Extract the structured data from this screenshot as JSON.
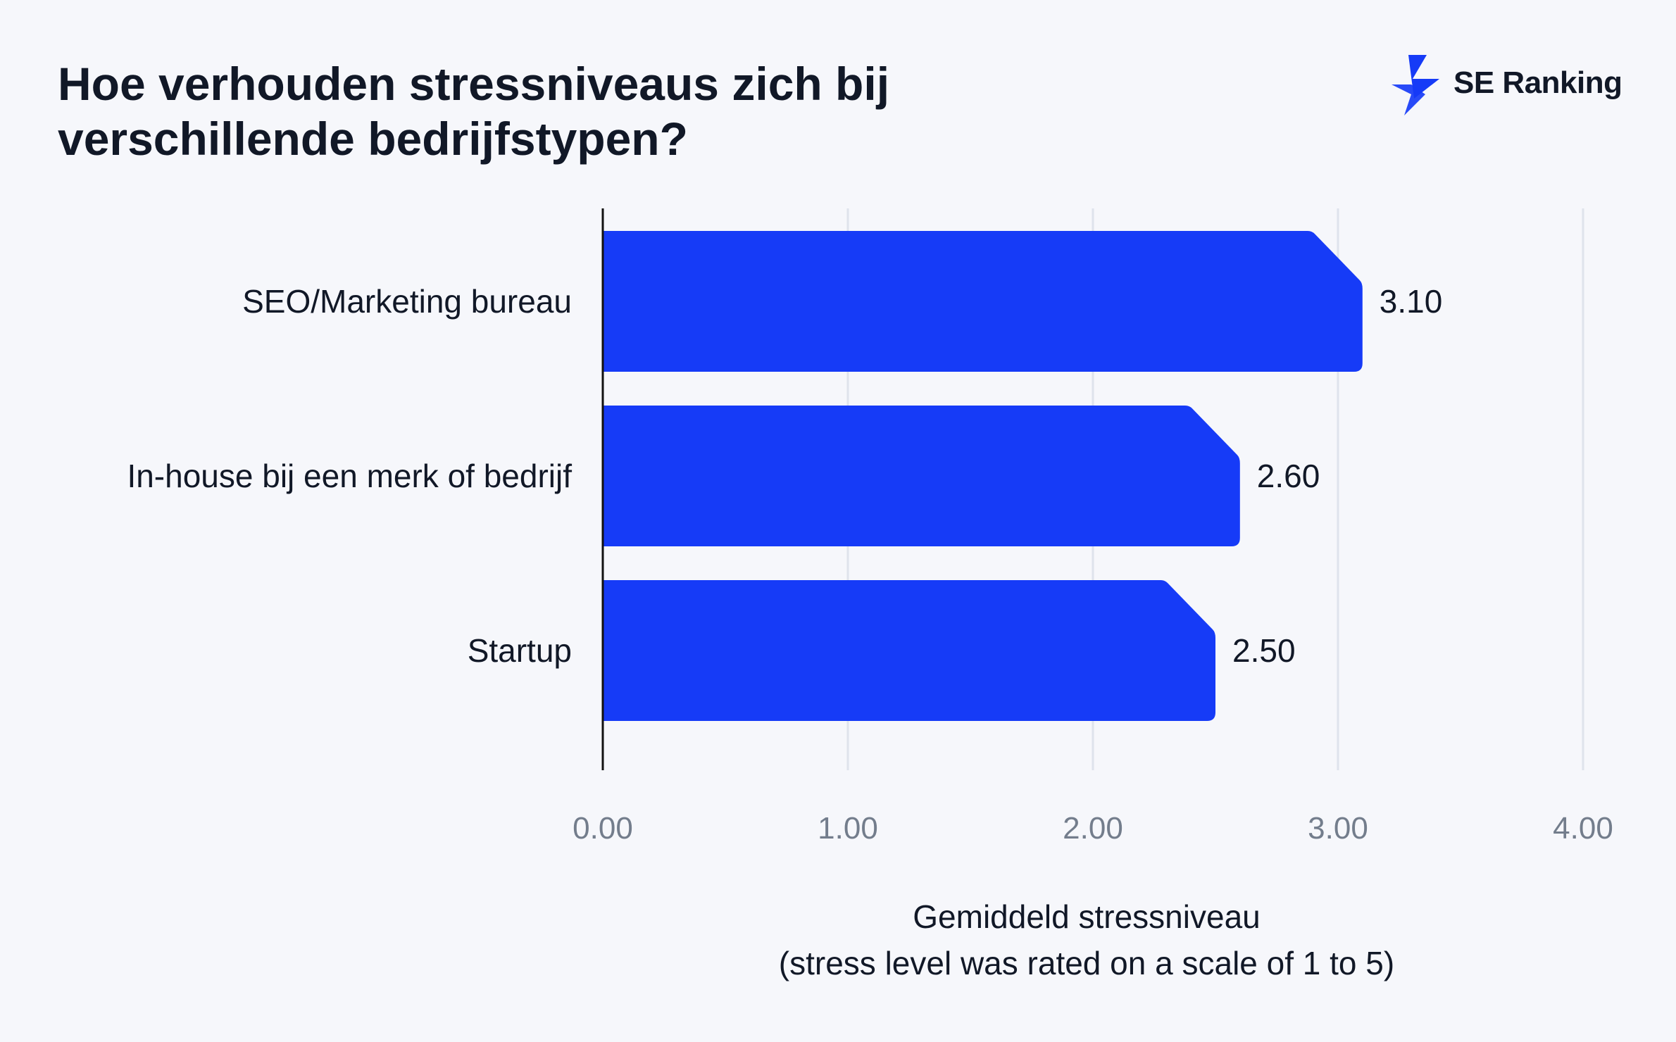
{
  "brand": {
    "name": "SE Ranking",
    "color": "#163bf7",
    "logo_icon": "lightning-bolt-icon"
  },
  "chart_data": {
    "type": "bar",
    "orientation": "horizontal",
    "title_lines": [
      "Hoe verhouden stressniveaus zich bij",
      "verschillende bedrijfstypen?"
    ],
    "categories": [
      "SEO/Marketing bureau",
      "In-house bij een merk of bedrijf",
      "Startup"
    ],
    "values": [
      3.1,
      2.6,
      2.5
    ],
    "value_labels": [
      "3.10",
      "2.60",
      "2.50"
    ],
    "xlim": [
      0,
      4
    ],
    "ticks": [
      0,
      1,
      2,
      3,
      4
    ],
    "tick_labels": [
      "0.00",
      "1.00",
      "2.00",
      "3.00",
      "4.00"
    ],
    "xlabel_lines": [
      "Gemiddeld stressniveau",
      "(stress level was rated on a scale of 1 to 5)"
    ],
    "ylabel": "",
    "grid": "vertical",
    "bar_color": "#163bf7",
    "grid_color": "#dfe3ec",
    "axis_color": "#111111",
    "tick_color": "#737d8c"
  }
}
